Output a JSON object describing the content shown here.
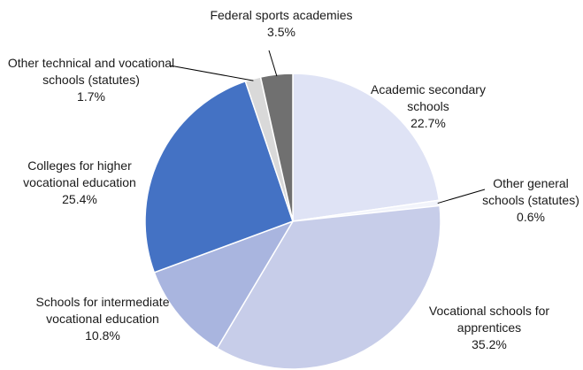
{
  "chart_data": {
    "type": "pie",
    "categories": [
      "Academic secondary schools",
      "Other general schools (statutes)",
      "Vocational schools for apprentices",
      "Schools for intermediate vocational education",
      "Colleges for higher vocational education",
      "Other technical and vocational schools (statutes)",
      "Federal sports academies"
    ],
    "values": [
      22.7,
      0.6,
      35.2,
      10.8,
      25.4,
      1.7,
      3.5
    ],
    "value_labels": [
      "22.7%",
      "0.6%",
      "35.2%",
      "10.8%",
      "25.4%",
      "1.7%",
      "3.5%"
    ],
    "colors": [
      "#dfe3f5",
      "#f2f4fb",
      "#c7cde9",
      "#a9b5df",
      "#4472c4",
      "#d9d9d9",
      "#707070"
    ]
  }
}
